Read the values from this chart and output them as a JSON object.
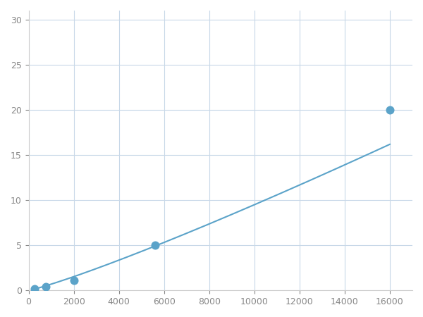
{
  "x": [
    250,
    750,
    2000,
    5600,
    16000
  ],
  "y": [
    0.2,
    0.4,
    1.1,
    5.0,
    20.0
  ],
  "line_color": "#5ba3c9",
  "marker_color": "#5ba3c9",
  "marker_size": 5,
  "xlim": [
    0,
    17000
  ],
  "ylim": [
    0,
    31
  ],
  "xticks": [
    0,
    2000,
    4000,
    6000,
    8000,
    10000,
    12000,
    14000,
    16000
  ],
  "yticks": [
    0,
    5,
    10,
    15,
    20,
    25,
    30
  ],
  "grid_color": "#c8d8e8",
  "background_color": "#ffffff",
  "figsize": [
    6.0,
    4.5
  ],
  "dpi": 100
}
